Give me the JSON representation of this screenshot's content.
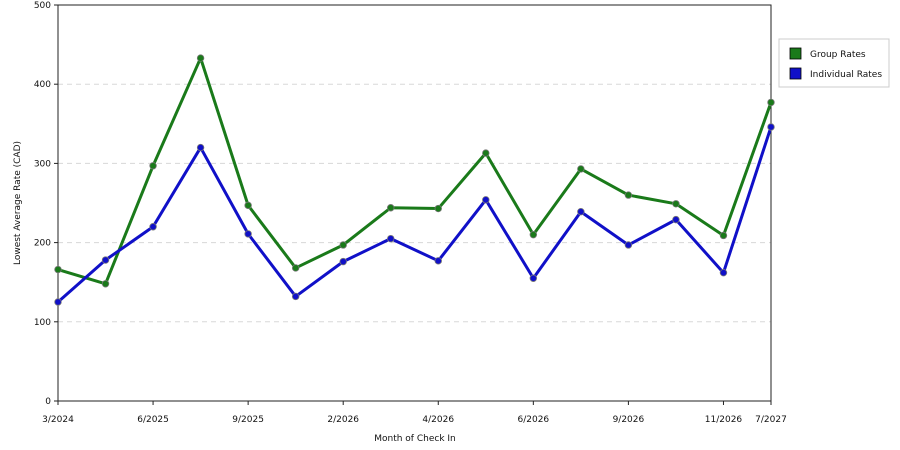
{
  "chart_data": {
    "type": "line",
    "xlabel": "Month of Check In",
    "ylabel": "Lowest Average Rate (CAD)",
    "ylim": [
      0,
      500
    ],
    "yticks": [
      0,
      100,
      200,
      300,
      400,
      500
    ],
    "x_tick_labels": [
      {
        "index": 0,
        "label": "3/2024"
      },
      {
        "index": 2,
        "label": "6/2025"
      },
      {
        "index": 4,
        "label": "9/2025"
      },
      {
        "index": 6,
        "label": "2/2026"
      },
      {
        "index": 8,
        "label": "4/2026"
      },
      {
        "index": 10,
        "label": "6/2026"
      },
      {
        "index": 12,
        "label": "9/2026"
      },
      {
        "index": 14,
        "label": "11/2026"
      },
      {
        "index": 15,
        "label": "7/2027"
      }
    ],
    "grid": "horizontal dashed",
    "legend_position": "right",
    "series": [
      {
        "name": "Group Rates",
        "color": "#1a7a1a",
        "values": [
          166,
          148,
          297,
          433,
          247,
          168,
          197,
          244,
          243,
          313,
          210,
          293,
          260,
          249,
          209,
          377
        ]
      },
      {
        "name": "Individual Rates",
        "color": "#1010c8",
        "values": [
          125,
          178,
          220,
          320,
          211,
          132,
          176,
          205,
          177,
          254,
          155,
          239,
          197,
          229,
          162,
          346
        ]
      }
    ]
  }
}
